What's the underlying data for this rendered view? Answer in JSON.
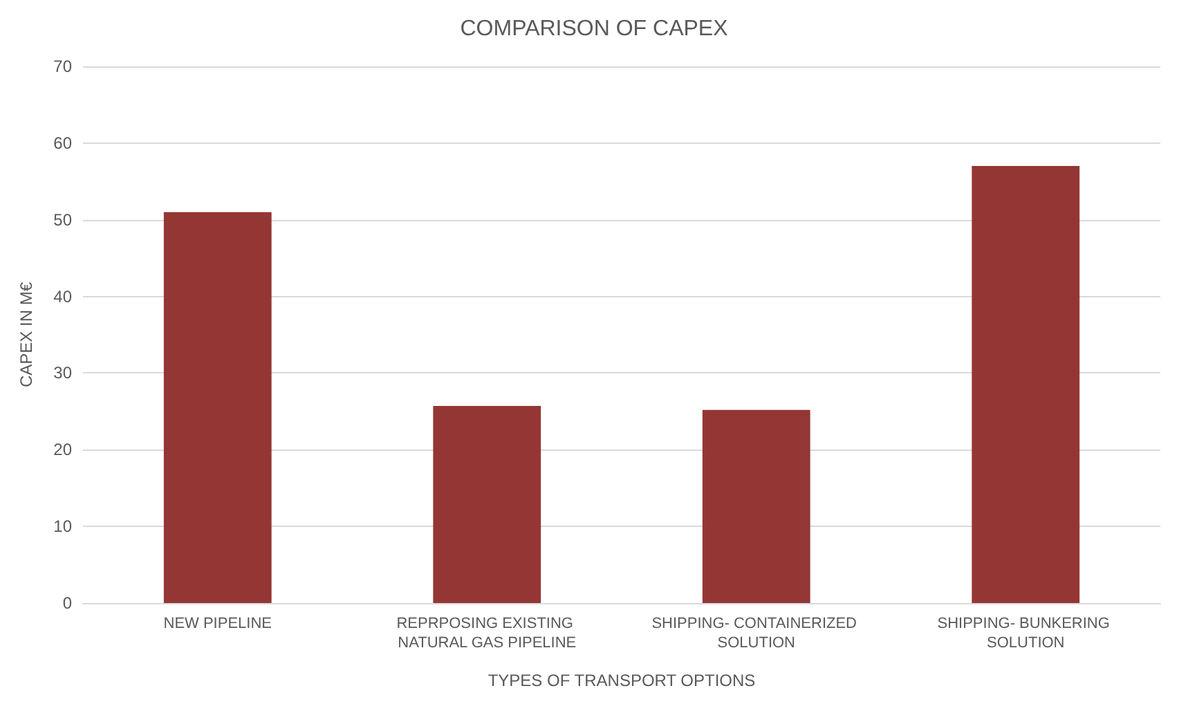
{
  "chart_data": {
    "type": "bar",
    "title": "COMPARISON OF CAPEX",
    "xlabel": "TYPES OF TRANSPORT OPTIONS",
    "ylabel": "CAPEX IN M€",
    "categories": [
      "NEW PIPELINE",
      "REPRPOSING EXISTING NATURAL GAS PIPELINE",
      "SHIPPING- CONTAINERIZED SOLUTION",
      "SHIPPING- BUNKERING SOLUTION"
    ],
    "values": [
      51,
      25.7,
      25.2,
      57
    ],
    "color": "#943634",
    "ylim": [
      0,
      70
    ],
    "yticks": [
      0,
      10,
      20,
      30,
      40,
      50,
      60,
      70
    ],
    "grid": "y"
  }
}
